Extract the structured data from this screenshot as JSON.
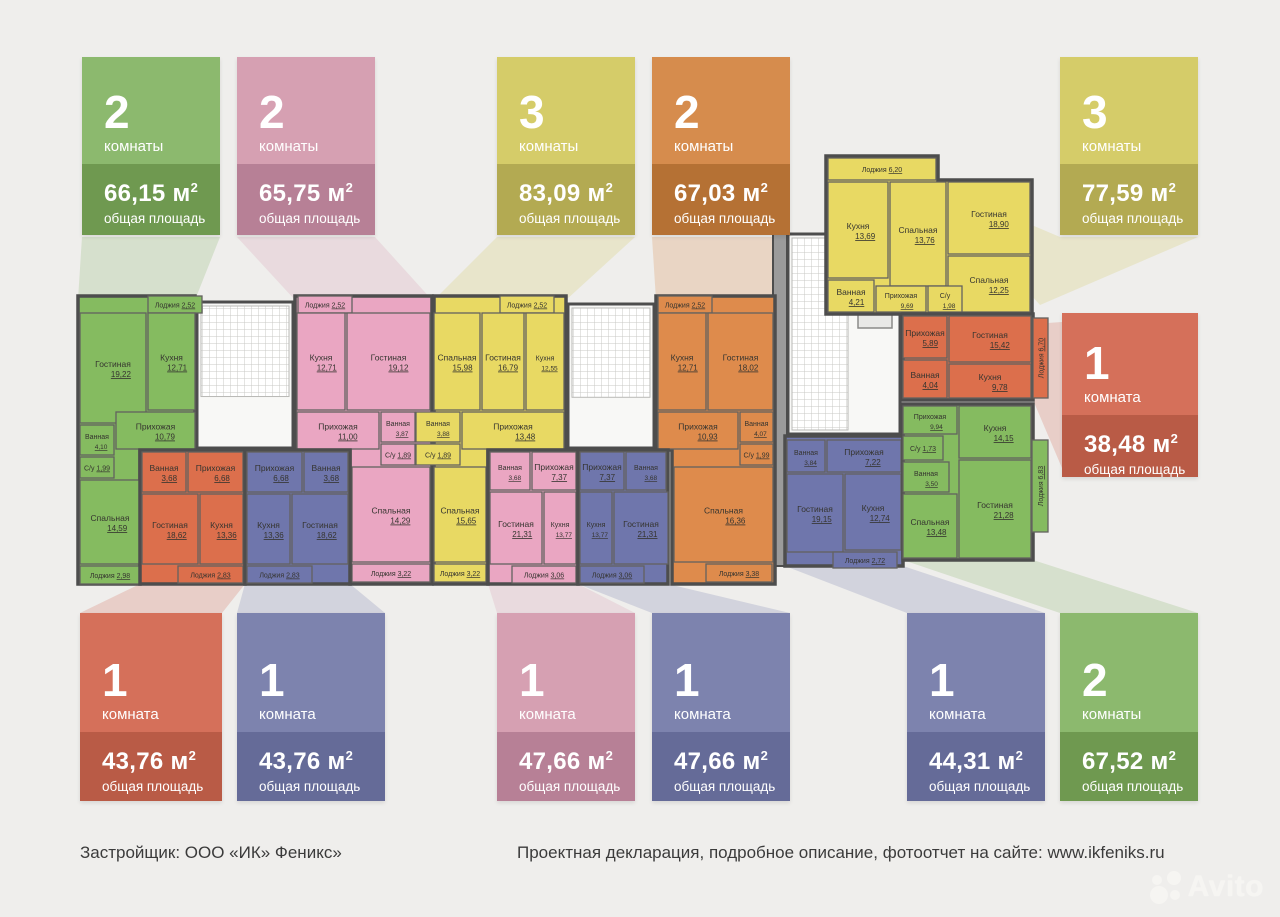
{
  "page_bg": "#efeeec",
  "colors": {
    "green": {
      "card_top": "#8cb96e",
      "card_bottom": "#6f9950",
      "plan": "#85bb60"
    },
    "pink": {
      "card_top": "#d6a0b2",
      "card_bottom": "#b78096",
      "plan": "#eaa6c2"
    },
    "yellow": {
      "card_top": "#d5cc69",
      "card_bottom": "#b3aa52",
      "plan": "#e8d963"
    },
    "orange": {
      "card_top": "#d68c4d",
      "card_bottom": "#b57134",
      "plan": "#de8b4c"
    },
    "red": {
      "card_top": "#d5705a",
      "card_bottom": "#b95b46",
      "plan": "#dc6f4c"
    },
    "purple": {
      "card_top": "#7d83ae",
      "card_bottom": "#656b98",
      "plan": "#6f76ac"
    }
  },
  "cards": [
    {
      "id": "card-2k-6615",
      "color": "green",
      "rooms_count": "2",
      "rooms_label": "комнаты",
      "area": "66,15",
      "unit": "м",
      "unit_sup": "2",
      "area_label": "общая площадь"
    },
    {
      "id": "card-2k-6575",
      "color": "pink",
      "rooms_count": "2",
      "rooms_label": "комнаты",
      "area": "65,75",
      "unit": "м",
      "unit_sup": "2",
      "area_label": "общая площадь"
    },
    {
      "id": "card-3k-8309",
      "color": "yellow",
      "rooms_count": "3",
      "rooms_label": "комнаты",
      "area": "83,09",
      "unit": "м",
      "unit_sup": "2",
      "area_label": "общая площадь"
    },
    {
      "id": "card-2k-6703",
      "color": "orange",
      "rooms_count": "2",
      "rooms_label": "комнаты",
      "area": "67,03",
      "unit": "м",
      "unit_sup": "2",
      "area_label": "общая площадь"
    },
    {
      "id": "card-3k-7759",
      "color": "yellow",
      "rooms_count": "3",
      "rooms_label": "комнаты",
      "area": "77,59",
      "unit": "м",
      "unit_sup": "2",
      "area_label": "общая площадь"
    },
    {
      "id": "card-1k-3848",
      "color": "red",
      "rooms_count": "1",
      "rooms_label": "комната",
      "area": "38,48",
      "unit": "м",
      "unit_sup": "2",
      "area_label": "общая площадь"
    },
    {
      "id": "card-1k-4376a",
      "color": "red",
      "rooms_count": "1",
      "rooms_label": "комната",
      "area": "43,76",
      "unit": "м",
      "unit_sup": "2",
      "area_label": "общая площадь"
    },
    {
      "id": "card-1k-4376b",
      "color": "purple",
      "rooms_count": "1",
      "rooms_label": "комната",
      "area": "43,76",
      "unit": "м",
      "unit_sup": "2",
      "area_label": "общая площадь"
    },
    {
      "id": "card-1k-4766a",
      "color": "pink",
      "rooms_count": "1",
      "rooms_label": "комната",
      "area": "47,66",
      "unit": "м",
      "unit_sup": "2",
      "area_label": "общая площадь"
    },
    {
      "id": "card-1k-4766b",
      "color": "purple",
      "rooms_count": "1",
      "rooms_label": "комната",
      "area": "47,66",
      "unit": "м",
      "unit_sup": "2",
      "area_label": "общая площадь"
    },
    {
      "id": "card-1k-4431",
      "color": "purple",
      "rooms_count": "1",
      "rooms_label": "комната",
      "area": "44,31",
      "unit": "м",
      "unit_sup": "2",
      "area_label": "общая площадь"
    },
    {
      "id": "card-2k-6752",
      "color": "green",
      "rooms_count": "2",
      "rooms_label": "комнаты",
      "area": "67,52",
      "unit": "м",
      "unit_sup": "2",
      "area_label": "общая площадь"
    }
  ],
  "plan": {
    "apartments": [
      {
        "id": "apt-2k-6615",
        "color": "green",
        "rooms": [
          {
            "name": "Лоджия",
            "area": "2,52"
          },
          {
            "name": "Гостиная",
            "area": "19,22"
          },
          {
            "name": "Кухня",
            "area": "12,71"
          },
          {
            "name": "Прихожая",
            "area": "10,79"
          },
          {
            "name": "Ванная",
            "area": "4,10"
          },
          {
            "name": "С/у",
            "area": "1,99"
          },
          {
            "name": "Спальная",
            "area": "14,59"
          },
          {
            "name": "Лоджия",
            "area": "2,98"
          }
        ]
      },
      {
        "id": "apt-2k-6575",
        "color": "pink",
        "rooms": [
          {
            "name": "Лоджия",
            "area": "2,52"
          },
          {
            "name": "Кухня",
            "area": "12,71"
          },
          {
            "name": "Гостиная",
            "area": "19,12"
          },
          {
            "name": "Прихожая",
            "area": "11,00"
          },
          {
            "name": "Ванная",
            "area": "3,87"
          },
          {
            "name": "С/у",
            "area": "1,89"
          },
          {
            "name": "Спальная",
            "area": "14,29"
          },
          {
            "name": "Лоджия",
            "area": "3,22"
          }
        ]
      },
      {
        "id": "apt-3k-8309",
        "color": "yellow",
        "rooms": [
          {
            "name": "Лоджия",
            "area": "2,52"
          },
          {
            "name": "Спальная",
            "area": "15,98"
          },
          {
            "name": "Гостиная",
            "area": "16,79"
          },
          {
            "name": "Кухня",
            "area": "12,55"
          },
          {
            "name": "Прихожая",
            "area": "13,48"
          },
          {
            "name": "Ванная",
            "area": "3,88"
          },
          {
            "name": "С/у",
            "area": "1,89"
          },
          {
            "name": "Спальная",
            "area": "15,65"
          },
          {
            "name": "Лоджия",
            "area": "3,22"
          }
        ]
      },
      {
        "id": "apt-2k-6703",
        "color": "orange",
        "rooms": [
          {
            "name": "Лоджия",
            "area": "2,52"
          },
          {
            "name": "Кухня",
            "area": "12,71"
          },
          {
            "name": "Гостиная",
            "area": "18,02"
          },
          {
            "name": "Прихожая",
            "area": "10,93"
          },
          {
            "name": "Ванная",
            "area": "4,07"
          },
          {
            "name": "С/у",
            "area": "1,99"
          },
          {
            "name": "Спальная",
            "area": "16,36"
          },
          {
            "name": "Лоджия",
            "area": "3,38"
          }
        ]
      },
      {
        "id": "apt-1k-4376a",
        "color": "red",
        "rooms": [
          {
            "name": "Ванная",
            "area": "3,68"
          },
          {
            "name": "Прихожая",
            "area": "6,68"
          },
          {
            "name": "Гостиная",
            "area": "18,62"
          },
          {
            "name": "Кухня",
            "area": "13,36"
          },
          {
            "name": "Лоджия",
            "area": "2,83"
          }
        ]
      },
      {
        "id": "apt-1k-4376b",
        "color": "purple",
        "rooms": [
          {
            "name": "Прихожая",
            "area": "6,68"
          },
          {
            "name": "Ванная",
            "area": "3,68"
          },
          {
            "name": "Кухня",
            "area": "13,36"
          },
          {
            "name": "Гостиная",
            "area": "18,62"
          },
          {
            "name": "Лоджия",
            "area": "2,83"
          }
        ]
      },
      {
        "id": "apt-1k-4766a",
        "color": "pink",
        "rooms": [
          {
            "name": "Ванная",
            "area": "3,68"
          },
          {
            "name": "Прихожая",
            "area": "7,37"
          },
          {
            "name": "Гостиная",
            "area": "21,31"
          },
          {
            "name": "Кухня",
            "area": "13,77"
          },
          {
            "name": "Лоджия",
            "area": "3,06"
          }
        ]
      },
      {
        "id": "apt-1k-4766b",
        "color": "purple",
        "rooms": [
          {
            "name": "Прихожая",
            "area": "7,37"
          },
          {
            "name": "Ванная",
            "area": "3,68"
          },
          {
            "name": "Кухня",
            "area": "13,77"
          },
          {
            "name": "Гостиная",
            "area": "21,31"
          },
          {
            "name": "Лоджия",
            "area": "3,06"
          }
        ]
      },
      {
        "id": "apt-3k-7759",
        "color": "yellow",
        "rooms": [
          {
            "name": "Лоджия",
            "area": "6,20"
          },
          {
            "name": "Кухня",
            "area": "13,69"
          },
          {
            "name": "Спальная",
            "area": "13,76"
          },
          {
            "name": "Гостиная",
            "area": "18,90"
          },
          {
            "name": "Спальная",
            "area": "12,25"
          },
          {
            "name": "Ванная",
            "area": "4,21"
          },
          {
            "name": "Прихожая",
            "area": "9,69"
          },
          {
            "name": "С/у",
            "area": "1,98"
          }
        ]
      },
      {
        "id": "apt-1k-3848",
        "color": "red",
        "rooms": [
          {
            "name": "Прихожая",
            "area": "5,89"
          },
          {
            "name": "Гостиная",
            "area": "15,42"
          },
          {
            "name": "Ванная",
            "area": "4,04"
          },
          {
            "name": "Кухня",
            "area": "9,78"
          },
          {
            "name": "Лоджия",
            "area": "6,70"
          }
        ]
      },
      {
        "id": "apt-1k-4431",
        "color": "purple",
        "rooms": [
          {
            "name": "Ванная",
            "area": "3,84"
          },
          {
            "name": "Прихожая",
            "area": "7,22"
          },
          {
            "name": "Кухня",
            "area": "12,74"
          },
          {
            "name": "Гостиная",
            "area": "19,15"
          },
          {
            "name": "Лоджия",
            "area": "2,72"
          }
        ]
      },
      {
        "id": "apt-2k-6752",
        "color": "green",
        "rooms": [
          {
            "name": "Прихожая",
            "area": "9,94"
          },
          {
            "name": "С/у",
            "area": "1,73"
          },
          {
            "name": "Ванная",
            "area": "3,50"
          },
          {
            "name": "Кухня",
            "area": "14,15"
          },
          {
            "name": "Гостиная",
            "area": "21,28"
          },
          {
            "name": "Спальная",
            "area": "13,48"
          },
          {
            "name": "Лоджия",
            "area": "6,83"
          }
        ]
      }
    ]
  },
  "footer": {
    "developer": "Застройщик: ООО «ИК» Феникс»",
    "declaration": "Проектная декларация, подробное описание, фотоотчет на сайте: www.ikfeniks.ru"
  },
  "watermark": {
    "brand": "Avito"
  }
}
